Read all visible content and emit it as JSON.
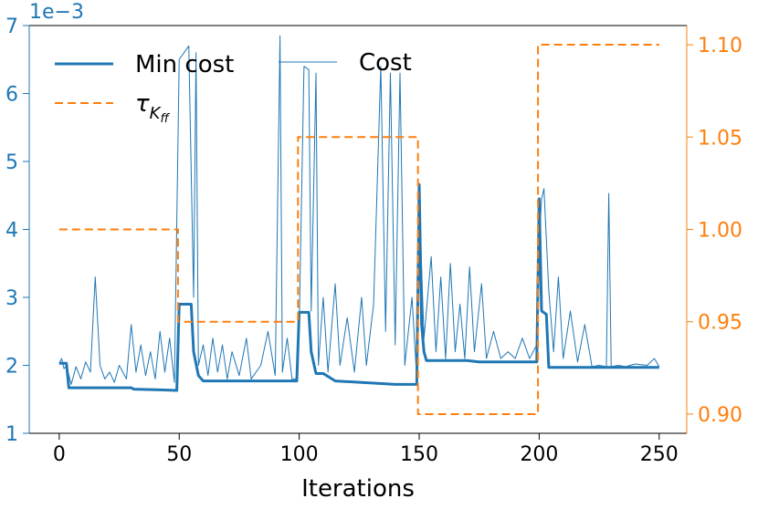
{
  "chart_data": {
    "type": "line",
    "xlabel": "Iterations",
    "y_offset_label": "1e−3",
    "xlim": [
      -12.5,
      261.5
    ],
    "xticks": [
      0,
      50,
      100,
      150,
      200,
      250
    ],
    "ylim": [
      1,
      7
    ],
    "yticks": [
      1,
      2,
      3,
      4,
      5,
      6,
      7
    ],
    "y_color": "#1f77b4",
    "y2lim": [
      0.8896,
      1.1104
    ],
    "y2ticks": [
      {
        "value": 0.9,
        "label": "0.90"
      },
      {
        "value": 0.95,
        "label": "0.95"
      },
      {
        "value": 1.0,
        "label": "1.00"
      },
      {
        "value": 1.05,
        "label": "1.05"
      },
      {
        "value": 1.1,
        "label": "1.10"
      }
    ],
    "y2_color": "#ff7f0e",
    "legend": "upper left",
    "series": [
      {
        "name": "Min cost",
        "color": "#1f77b4",
        "line_width": 3,
        "dashed": false,
        "x": [
          0,
          3,
          4,
          30,
          31,
          42,
          49,
          50,
          55,
          56,
          58,
          60,
          70,
          90,
          99,
          100,
          104,
          105,
          107,
          110,
          115,
          140,
          149,
          150,
          151,
          152,
          153,
          170,
          175,
          199,
          200,
          201,
          203,
          204,
          250
        ],
        "values": [
          2.03,
          2.03,
          1.67,
          1.67,
          1.65,
          1.64,
          1.63,
          2.9,
          2.9,
          2.2,
          1.85,
          1.77,
          1.77,
          1.77,
          1.77,
          2.78,
          2.78,
          2.2,
          1.88,
          1.88,
          1.77,
          1.72,
          1.72,
          4.66,
          2.6,
          2.2,
          2.07,
          2.07,
          2.05,
          2.05,
          4.45,
          2.8,
          2.75,
          1.97,
          1.97
        ]
      },
      {
        "name": "Cost",
        "color": "#1f77b4",
        "line_width": 1,
        "dashed": false,
        "x": [
          0,
          1,
          2,
          3,
          5,
          7,
          9,
          11,
          13,
          15,
          17,
          19,
          21,
          23,
          25,
          28,
          30,
          32,
          34,
          36,
          38,
          40,
          42,
          44,
          46,
          48,
          50,
          52,
          54,
          56,
          57,
          58,
          60,
          62,
          64,
          66,
          68,
          70,
          72,
          75,
          78,
          80,
          84,
          87,
          90,
          92,
          93,
          95,
          97,
          99,
          100,
          102,
          104,
          105,
          107,
          108,
          110,
          112,
          115,
          117,
          120,
          123,
          126,
          128,
          131,
          134,
          136,
          138,
          140,
          142,
          144,
          147,
          149,
          150,
          152,
          155,
          157,
          159,
          161,
          163,
          165,
          167,
          169,
          171,
          173,
          176,
          178,
          181,
          184,
          187,
          190,
          193,
          196,
          199,
          200,
          201,
          202,
          204,
          206,
          208,
          210,
          213,
          216,
          219,
          222,
          225,
          228,
          229,
          230,
          233,
          236,
          240,
          245,
          248,
          250
        ],
        "values": [
          2.03,
          2.1,
          1.95,
          2.0,
          1.72,
          1.98,
          1.8,
          2.05,
          1.9,
          3.3,
          2.0,
          1.8,
          1.9,
          1.75,
          2.0,
          1.8,
          2.6,
          1.9,
          2.3,
          1.85,
          2.2,
          1.8,
          2.5,
          1.9,
          2.4,
          1.75,
          6.5,
          6.6,
          6.7,
          3.0,
          6.6,
          2.0,
          2.3,
          1.85,
          2.4,
          1.9,
          2.3,
          1.8,
          2.2,
          1.85,
          2.4,
          1.8,
          2.0,
          2.5,
          1.85,
          6.85,
          1.9,
          2.4,
          1.8,
          1.8,
          2.6,
          6.4,
          6.35,
          2.8,
          6.3,
          2.0,
          3.0,
          1.9,
          3.2,
          2.0,
          2.7,
          1.9,
          3.0,
          2.0,
          2.9,
          6.4,
          2.5,
          6.3,
          2.3,
          6.3,
          2.0,
          3.0,
          1.8,
          4.5,
          2.4,
          3.6,
          2.2,
          3.3,
          2.1,
          3.5,
          2.2,
          2.9,
          2.1,
          3.45,
          2.2,
          3.2,
          2.1,
          2.5,
          2.1,
          2.2,
          2.1,
          2.4,
          2.1,
          2.3,
          3.8,
          4.45,
          4.6,
          3.1,
          2.2,
          3.3,
          2.1,
          2.8,
          2.05,
          2.6,
          1.98,
          2.0,
          1.98,
          4.53,
          1.98,
          2.0,
          1.98,
          2.02,
          2.0,
          2.1,
          1.98
        ]
      },
      {
        "name": "τ",
        "subscript": "K",
        "subsubscript": "ff",
        "color": "#ff7f0e",
        "line_width": 2,
        "dashed": true,
        "axis": "y2",
        "x": [
          0,
          49.5,
          49.5,
          99.5,
          99.5,
          149.5,
          149.5,
          199.5,
          199.5,
          250
        ],
        "values": [
          1.0,
          1.0,
          0.95,
          0.95,
          1.05,
          1.05,
          0.9,
          0.9,
          1.1,
          1.1
        ]
      }
    ]
  }
}
